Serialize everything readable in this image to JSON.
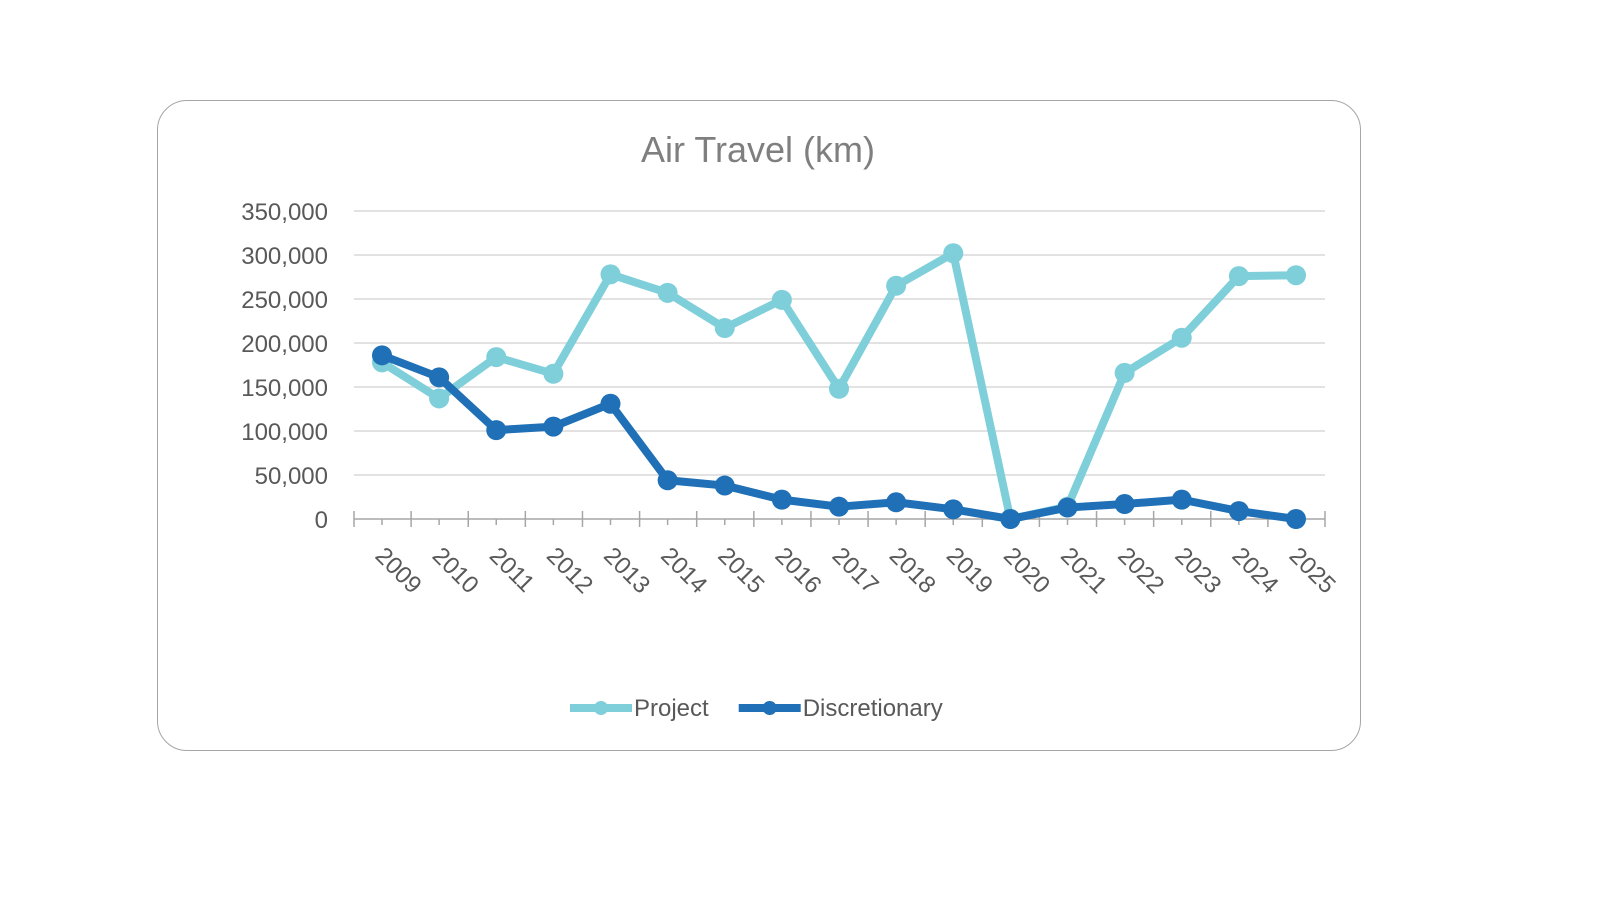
{
  "chart_data": {
    "type": "line",
    "title": "Air Travel (km)",
    "xlabel": "",
    "ylabel": "",
    "categories": [
      "2009",
      "2010",
      "2011",
      "2012",
      "2013",
      "2014",
      "2015",
      "2016",
      "2017",
      "2018",
      "2019",
      "2020",
      "2021",
      "2022",
      "2023",
      "2024",
      "2025"
    ],
    "series": [
      {
        "name": "Project",
        "color": "#7ecfd9",
        "values": [
          178000,
          137000,
          184000,
          165000,
          278000,
          257000,
          217000,
          249000,
          148000,
          265000,
          302000,
          0,
          14000,
          166000,
          206000,
          276000,
          277000
        ]
      },
      {
        "name": "Discretionary",
        "color": "#1f70b6",
        "values": [
          186000,
          161000,
          101000,
          105000,
          131000,
          44000,
          38000,
          22000,
          14000,
          19000,
          11000,
          0,
          13000,
          17000,
          22000,
          9000,
          0
        ]
      }
    ],
    "ylim": [
      0,
      350000
    ],
    "yticks": [
      0,
      50000,
      100000,
      150000,
      200000,
      250000,
      300000,
      350000
    ],
    "ytick_labels": [
      "0",
      "50,000",
      "100,000",
      "150,000",
      "200,000",
      "250,000",
      "300,000",
      "350,000"
    ],
    "grid": true,
    "legend": "bottom"
  }
}
